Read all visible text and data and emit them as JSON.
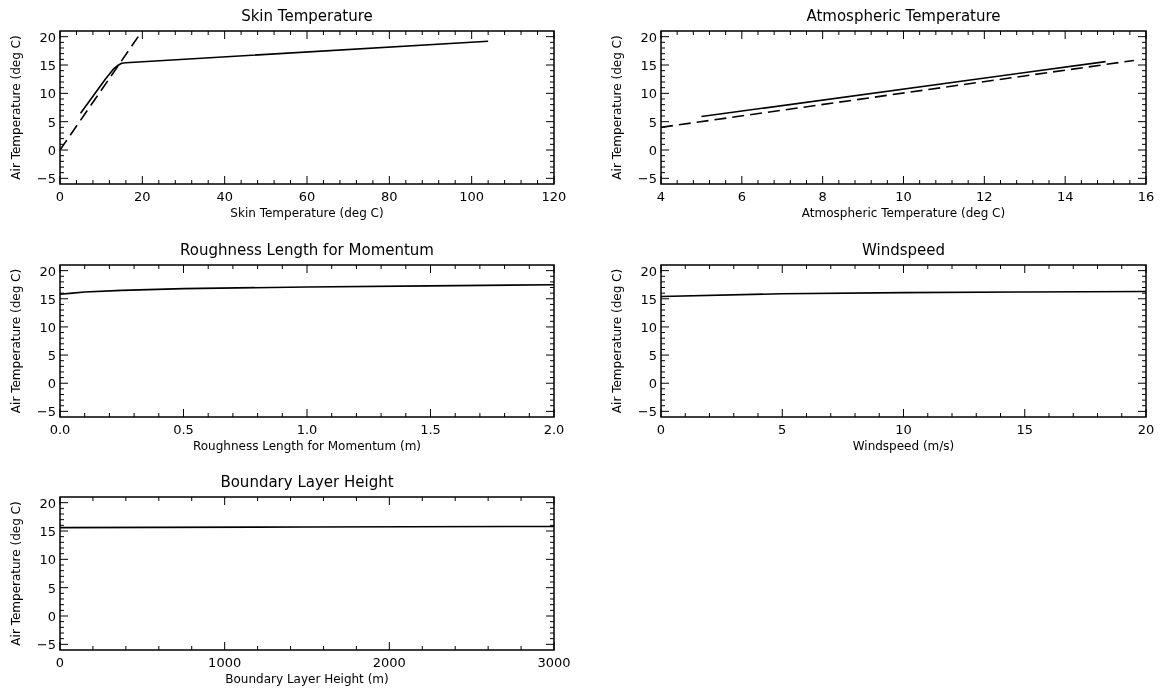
{
  "chart_data": [
    {
      "type": "line",
      "title": "Skin Temperature",
      "xlabel": "Skin Temperature (deg C)",
      "ylabel": "Air Temperature (deg C)",
      "xlim": [
        0,
        120
      ],
      "xticks": [
        0,
        20,
        40,
        60,
        80,
        100,
        120
      ],
      "ylim": [
        -6,
        21
      ],
      "yticks": [
        -5,
        0,
        5,
        10,
        15,
        20
      ],
      "grid": false,
      "series": [
        {
          "color": "#000000",
          "line_style": "solid",
          "x": [
            5,
            8,
            11,
            13,
            14,
            15,
            16,
            104
          ],
          "values": [
            6.5,
            9.5,
            12.5,
            14.3,
            14.9,
            15.3,
            15.4,
            19.2
          ]
        },
        {
          "color": "#000000",
          "line_style": "dashed",
          "x": [
            0,
            19
          ],
          "values": [
            0,
            20
          ]
        }
      ]
    },
    {
      "type": "line",
      "title": "Atmospheric Temperature",
      "xlabel": "Atmospheric Temperature (deg C)",
      "ylabel": "Air Temperature (deg C)",
      "xlim": [
        4,
        16
      ],
      "xticks": [
        4,
        6,
        8,
        10,
        12,
        14,
        16
      ],
      "ylim": [
        -6,
        21
      ],
      "yticks": [
        -5,
        0,
        5,
        10,
        15,
        20
      ],
      "grid": false,
      "series": [
        {
          "color": "#000000",
          "line_style": "solid",
          "x": [
            5,
            15
          ],
          "values": [
            5.9,
            15.6
          ]
        },
        {
          "color": "#000000",
          "line_style": "dashed",
          "x": [
            4,
            15.7
          ],
          "values": [
            4.0,
            15.8
          ]
        }
      ]
    },
    {
      "type": "line",
      "title": "Roughness Length for Momentum",
      "xlabel": "Roughness Length for Momentum (m)",
      "ylabel": "Air Temperature (deg C)",
      "xlim": [
        0,
        2
      ],
      "xticks": [
        {
          "value": 0,
          "label": "0.0"
        },
        {
          "value": 0.5,
          "label": "0.5"
        },
        {
          "value": 1,
          "label": "1.0"
        },
        {
          "value": 1.5,
          "label": "1.5"
        },
        {
          "value": 2,
          "label": "2.0"
        }
      ],
      "ylim": [
        -6,
        21
      ],
      "yticks": [
        -5,
        0,
        5,
        10,
        15,
        20
      ],
      "grid": false,
      "series": [
        {
          "color": "#000000",
          "line_style": "solid",
          "x": [
            0,
            0.05,
            0.1,
            0.25,
            0.5,
            1,
            1.5,
            2
          ],
          "values": [
            15.8,
            16.0,
            16.2,
            16.5,
            16.8,
            17.1,
            17.3,
            17.5
          ]
        }
      ]
    },
    {
      "type": "line",
      "title": "Windspeed",
      "xlabel": "Windspeed (m/s)",
      "ylabel": "Air Temperature (deg C)",
      "xlim": [
        0,
        20
      ],
      "xticks": [
        0,
        5,
        10,
        15,
        20
      ],
      "ylim": [
        -6,
        21
      ],
      "yticks": [
        -5,
        0,
        5,
        10,
        15,
        20
      ],
      "grid": false,
      "series": [
        {
          "color": "#000000",
          "line_style": "solid",
          "x": [
            0,
            5,
            10,
            15,
            20
          ],
          "values": [
            15.4,
            15.9,
            16.1,
            16.2,
            16.3
          ]
        }
      ]
    },
    {
      "type": "line",
      "title": "Boundary Layer Height",
      "xlabel": "Boundary Layer Height (m)",
      "ylabel": "Air Temperature (deg C)",
      "xlim": [
        0,
        3000
      ],
      "xticks": [
        0,
        1000,
        2000,
        3000
      ],
      "ylim": [
        -6,
        21
      ],
      "yticks": [
        -5,
        0,
        5,
        10,
        15,
        20
      ],
      "grid": false,
      "series": [
        {
          "color": "#000000",
          "line_style": "solid",
          "x": [
            0,
            1500,
            3000
          ],
          "values": [
            15.6,
            15.7,
            15.8
          ]
        }
      ]
    }
  ]
}
